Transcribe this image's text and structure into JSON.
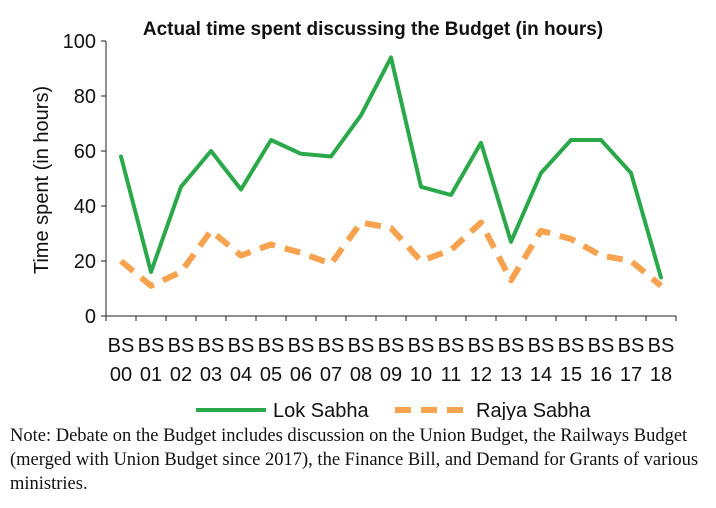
{
  "chart_data": {
    "type": "line",
    "title": "Actual time spent discussing the Budget (in hours)",
    "ylabel": "Time spent (in hours)",
    "xlabel": "",
    "ylim": [
      0,
      100
    ],
    "yticks": [
      0,
      20,
      40,
      60,
      80,
      100
    ],
    "categories": [
      [
        "BS",
        "00"
      ],
      [
        "BS",
        "01"
      ],
      [
        "BS",
        "02"
      ],
      [
        "BS",
        "03"
      ],
      [
        "BS",
        "04"
      ],
      [
        "BS",
        "05"
      ],
      [
        "BS",
        "06"
      ],
      [
        "BS",
        "07"
      ],
      [
        "BS",
        "08"
      ],
      [
        "BS",
        "09"
      ],
      [
        "BS",
        "10"
      ],
      [
        "BS",
        "11"
      ],
      [
        "BS",
        "12"
      ],
      [
        "BS",
        "13"
      ],
      [
        "BS",
        "14"
      ],
      [
        "BS",
        "15"
      ],
      [
        "BS",
        "16"
      ],
      [
        "BS",
        "17"
      ],
      [
        "BS",
        "18"
      ]
    ],
    "series": [
      {
        "name": "Lok Sabha",
        "color": "#2aa84a",
        "style": "solid",
        "values": [
          58,
          16,
          47,
          60,
          46,
          64,
          59,
          58,
          73,
          94,
          47,
          44,
          63,
          27,
          52,
          64,
          64,
          52,
          14
        ]
      },
      {
        "name": "Rajya Sabha",
        "color": "#f7a24e",
        "style": "dashed",
        "values": [
          20,
          11,
          16,
          31,
          22,
          26,
          23,
          19,
          34,
          32,
          20,
          24,
          34,
          13,
          31,
          28,
          22,
          20,
          11
        ]
      }
    ],
    "legend_position": "bottom",
    "grid": false
  },
  "note": "Note: Debate on the Budget includes discussion on the Union Budget, the Railways Budget (merged with Union Budget since 2017), the Finance Bill, and Demand for Grants of various ministries."
}
